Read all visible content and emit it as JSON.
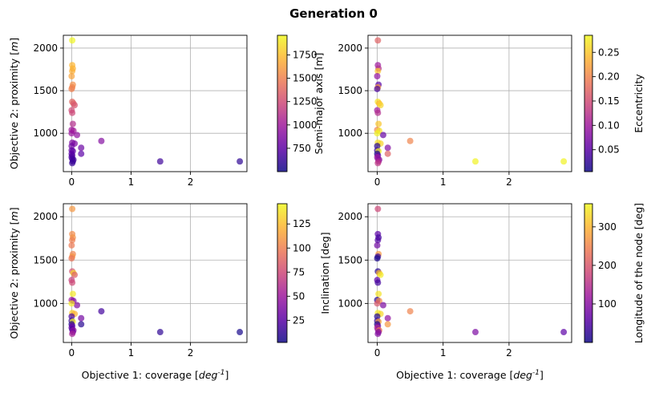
{
  "figure": {
    "title": "Generation 0"
  },
  "chart_data": [
    {
      "type": "scatter",
      "panel": "top-left",
      "xlabel": "",
      "ylabel": "Objective 2: proximity [m]",
      "xlim": [
        -0.14,
        2.95
      ],
      "ylim": [
        550,
        2150
      ],
      "xticks": [
        0,
        1,
        2
      ],
      "yticks": [
        1000,
        1500,
        2000
      ],
      "xtick_labels": [
        "0",
        "1",
        "2"
      ],
      "ytick_labels": [
        "1000",
        "1500",
        "2000"
      ],
      "grid": true,
      "colorbar": {
        "label": "",
        "min": 500,
        "max": 1960,
        "ticks": [
          750,
          1000,
          1250,
          1500,
          1750
        ],
        "tick_labels": [
          "750",
          "1000",
          "1250",
          "1500",
          "1750"
        ]
      },
      "points": [
        {
          "x": 0.01,
          "y": 2090,
          "c": 1950
        },
        {
          "x": 0.01,
          "y": 1800,
          "c": 1720
        },
        {
          "x": 0.02,
          "y": 1760,
          "c": 1700
        },
        {
          "x": 0.01,
          "y": 1730,
          "c": 1690
        },
        {
          "x": 0.0,
          "y": 1670,
          "c": 1650
        },
        {
          "x": 0.02,
          "y": 1570,
          "c": 1560
        },
        {
          "x": 0.01,
          "y": 1540,
          "c": 1520
        },
        {
          "x": 0.0,
          "y": 1520,
          "c": 1500
        },
        {
          "x": 0.01,
          "y": 1370,
          "c": 1380
        },
        {
          "x": 0.03,
          "y": 1350,
          "c": 1350
        },
        {
          "x": 0.05,
          "y": 1330,
          "c": 1300
        },
        {
          "x": 0.0,
          "y": 1270,
          "c": 1250
        },
        {
          "x": 0.01,
          "y": 1240,
          "c": 1230
        },
        {
          "x": 0.02,
          "y": 1110,
          "c": 1100
        },
        {
          "x": 0.0,
          "y": 1040,
          "c": 1000
        },
        {
          "x": 0.03,
          "y": 1030,
          "c": 1020
        },
        {
          "x": 0.09,
          "y": 980,
          "c": 950
        },
        {
          "x": 0.0,
          "y": 1000,
          "c": 980
        },
        {
          "x": 0.01,
          "y": 890,
          "c": 880
        },
        {
          "x": 0.05,
          "y": 880,
          "c": 870
        },
        {
          "x": 0.0,
          "y": 850,
          "c": 820
        },
        {
          "x": 0.16,
          "y": 830,
          "c": 800
        },
        {
          "x": 0.0,
          "y": 800,
          "c": 780
        },
        {
          "x": 0.02,
          "y": 790,
          "c": 760
        },
        {
          "x": 0.16,
          "y": 760,
          "c": 740
        },
        {
          "x": 0.0,
          "y": 760,
          "c": 740
        },
        {
          "x": 0.01,
          "y": 740,
          "c": 720
        },
        {
          "x": 0.0,
          "y": 720,
          "c": 700
        },
        {
          "x": 0.01,
          "y": 700,
          "c": 680
        },
        {
          "x": 0.03,
          "y": 690,
          "c": 660
        },
        {
          "x": 0.02,
          "y": 670,
          "c": 650
        },
        {
          "x": 0.01,
          "y": 650,
          "c": 630
        },
        {
          "x": 0.5,
          "y": 910,
          "c": 900
        },
        {
          "x": 1.49,
          "y": 670,
          "c": 650
        },
        {
          "x": 2.83,
          "y": 670,
          "c": 600
        }
      ]
    },
    {
      "type": "scatter",
      "panel": "top-right",
      "xlabel": "",
      "ylabel": "Semi-major axis [m]",
      "xlim": [
        -0.14,
        2.95
      ],
      "ylim": [
        550,
        2150
      ],
      "xticks": [
        0,
        1,
        2
      ],
      "yticks": [
        1000,
        1500,
        2000
      ],
      "xtick_labels": [
        "0",
        "1",
        "2"
      ],
      "ytick_labels": [
        "1000",
        "1500",
        "2000"
      ],
      "grid": true,
      "colorbar": {
        "label": "Eccentricity",
        "min": 0.005,
        "max": 0.285,
        "ticks": [
          0.05,
          0.1,
          0.15,
          0.2,
          0.25
        ],
        "tick_labels": [
          "0.05",
          "0.10",
          "0.15",
          "0.20",
          "0.25"
        ]
      },
      "points": [
        {
          "x": 0.01,
          "y": 2090,
          "c": 0.17
        },
        {
          "x": 0.01,
          "y": 1800,
          "c": 0.1
        },
        {
          "x": 0.02,
          "y": 1760,
          "c": 0.12
        },
        {
          "x": 0.01,
          "y": 1730,
          "c": 0.25
        },
        {
          "x": 0.0,
          "y": 1670,
          "c": 0.09
        },
        {
          "x": 0.02,
          "y": 1570,
          "c": 0.05
        },
        {
          "x": 0.01,
          "y": 1540,
          "c": 0.22
        },
        {
          "x": 0.0,
          "y": 1520,
          "c": 0.04
        },
        {
          "x": 0.01,
          "y": 1370,
          "c": 0.27
        },
        {
          "x": 0.03,
          "y": 1350,
          "c": 0.24
        },
        {
          "x": 0.05,
          "y": 1330,
          "c": 0.26
        },
        {
          "x": 0.0,
          "y": 1270,
          "c": 0.1
        },
        {
          "x": 0.01,
          "y": 1240,
          "c": 0.12
        },
        {
          "x": 0.02,
          "y": 1110,
          "c": 0.25
        },
        {
          "x": 0.0,
          "y": 1040,
          "c": 0.2
        },
        {
          "x": 0.03,
          "y": 1030,
          "c": 0.27
        },
        {
          "x": 0.09,
          "y": 980,
          "c": 0.06
        },
        {
          "x": 0.0,
          "y": 1000,
          "c": 0.28
        },
        {
          "x": 0.01,
          "y": 890,
          "c": 0.27
        },
        {
          "x": 0.05,
          "y": 880,
          "c": 0.26
        },
        {
          "x": 0.0,
          "y": 850,
          "c": 0.02
        },
        {
          "x": 0.16,
          "y": 830,
          "c": 0.08
        },
        {
          "x": 0.0,
          "y": 800,
          "c": 0.03
        },
        {
          "x": 0.02,
          "y": 790,
          "c": 0.28
        },
        {
          "x": 0.16,
          "y": 760,
          "c": 0.17
        },
        {
          "x": 0.0,
          "y": 760,
          "c": 0.01
        },
        {
          "x": 0.01,
          "y": 740,
          "c": 0.05
        },
        {
          "x": 0.0,
          "y": 720,
          "c": 0.1
        },
        {
          "x": 0.01,
          "y": 700,
          "c": 0.09
        },
        {
          "x": 0.03,
          "y": 690,
          "c": 0.08
        },
        {
          "x": 0.02,
          "y": 670,
          "c": 0.11
        },
        {
          "x": 0.01,
          "y": 650,
          "c": 0.13
        },
        {
          "x": 0.5,
          "y": 910,
          "c": 0.2
        },
        {
          "x": 1.49,
          "y": 670,
          "c": 0.28
        },
        {
          "x": 2.83,
          "y": 670,
          "c": 0.28
        }
      ]
    },
    {
      "type": "scatter",
      "panel": "bottom-left",
      "xlabel": "Objective 1: coverage [deg^-1]",
      "ylabel": "Objective 2: proximity [m]",
      "xlim": [
        -0.14,
        2.95
      ],
      "ylim": [
        550,
        2150
      ],
      "xticks": [
        0,
        1,
        2
      ],
      "yticks": [
        1000,
        1500,
        2000
      ],
      "xtick_labels": [
        "0",
        "1",
        "2"
      ],
      "ytick_labels": [
        "1000",
        "1500",
        "2000"
      ],
      "grid": true,
      "colorbar": {
        "label": "Inclination [deg]",
        "min": 2,
        "max": 146,
        "ticks": [
          25,
          50,
          75,
          100,
          125
        ],
        "tick_labels": [
          "25",
          "50",
          "75",
          "100",
          "125"
        ]
      },
      "points": [
        {
          "x": 0.01,
          "y": 2090,
          "c": 110
        },
        {
          "x": 0.01,
          "y": 1800,
          "c": 105
        },
        {
          "x": 0.02,
          "y": 1760,
          "c": 108
        },
        {
          "x": 0.01,
          "y": 1730,
          "c": 100
        },
        {
          "x": 0.0,
          "y": 1670,
          "c": 98
        },
        {
          "x": 0.02,
          "y": 1570,
          "c": 102
        },
        {
          "x": 0.01,
          "y": 1540,
          "c": 110
        },
        {
          "x": 0.0,
          "y": 1520,
          "c": 95
        },
        {
          "x": 0.01,
          "y": 1370,
          "c": 80
        },
        {
          "x": 0.03,
          "y": 1350,
          "c": 135
        },
        {
          "x": 0.05,
          "y": 1330,
          "c": 85
        },
        {
          "x": 0.0,
          "y": 1270,
          "c": 70
        },
        {
          "x": 0.01,
          "y": 1240,
          "c": 75
        },
        {
          "x": 0.02,
          "y": 1110,
          "c": 140
        },
        {
          "x": 0.0,
          "y": 1040,
          "c": 50
        },
        {
          "x": 0.03,
          "y": 1030,
          "c": 40
        },
        {
          "x": 0.09,
          "y": 980,
          "c": 40
        },
        {
          "x": 0.0,
          "y": 1000,
          "c": 140
        },
        {
          "x": 0.01,
          "y": 890,
          "c": 130
        },
        {
          "x": 0.05,
          "y": 880,
          "c": 120
        },
        {
          "x": 0.0,
          "y": 850,
          "c": 20
        },
        {
          "x": 0.16,
          "y": 830,
          "c": 35
        },
        {
          "x": 0.0,
          "y": 800,
          "c": 15
        },
        {
          "x": 0.02,
          "y": 790,
          "c": 145
        },
        {
          "x": 0.16,
          "y": 760,
          "c": 10
        },
        {
          "x": 0.0,
          "y": 760,
          "c": 8
        },
        {
          "x": 0.01,
          "y": 740,
          "c": 25
        },
        {
          "x": 0.0,
          "y": 720,
          "c": 30
        },
        {
          "x": 0.01,
          "y": 700,
          "c": 20
        },
        {
          "x": 0.03,
          "y": 690,
          "c": 45
        },
        {
          "x": 0.02,
          "y": 670,
          "c": 35
        },
        {
          "x": 0.01,
          "y": 650,
          "c": 55
        },
        {
          "x": 0.5,
          "y": 910,
          "c": 18
        },
        {
          "x": 1.49,
          "y": 670,
          "c": 12
        },
        {
          "x": 2.83,
          "y": 670,
          "c": 5
        }
      ]
    },
    {
      "type": "scatter",
      "panel": "bottom-right",
      "xlabel": "Objective 1: coverage [deg^-1]",
      "ylabel": "",
      "xlim": [
        -0.14,
        2.95
      ],
      "ylim": [
        550,
        2150
      ],
      "xticks": [
        0,
        1,
        2
      ],
      "yticks": [
        1000,
        1500,
        2000
      ],
      "xtick_labels": [
        "0",
        "1",
        "2"
      ],
      "ytick_labels": [
        "1000",
        "1500",
        "2000"
      ],
      "grid": true,
      "colorbar": {
        "label": "Longitude of the node [deg]",
        "min": 0,
        "max": 360,
        "ticks": [
          100,
          200,
          300
        ],
        "tick_labels": [
          "100",
          "200",
          "300"
        ]
      },
      "points": [
        {
          "x": 0.01,
          "y": 2090,
          "c": 180
        },
        {
          "x": 0.01,
          "y": 1800,
          "c": 60
        },
        {
          "x": 0.02,
          "y": 1760,
          "c": 40
        },
        {
          "x": 0.01,
          "y": 1730,
          "c": 50
        },
        {
          "x": 0.0,
          "y": 1670,
          "c": 80
        },
        {
          "x": 0.02,
          "y": 1570,
          "c": 270
        },
        {
          "x": 0.01,
          "y": 1540,
          "c": 30
        },
        {
          "x": 0.0,
          "y": 1520,
          "c": 10
        },
        {
          "x": 0.01,
          "y": 1370,
          "c": 20
        },
        {
          "x": 0.03,
          "y": 1350,
          "c": 300
        },
        {
          "x": 0.05,
          "y": 1330,
          "c": 350
        },
        {
          "x": 0.0,
          "y": 1270,
          "c": 60
        },
        {
          "x": 0.01,
          "y": 1240,
          "c": 40
        },
        {
          "x": 0.02,
          "y": 1110,
          "c": 340
        },
        {
          "x": 0.0,
          "y": 1040,
          "c": 20
        },
        {
          "x": 0.03,
          "y": 1030,
          "c": 260
        },
        {
          "x": 0.09,
          "y": 980,
          "c": 90
        },
        {
          "x": 0.0,
          "y": 1000,
          "c": 200
        },
        {
          "x": 0.01,
          "y": 890,
          "c": 350
        },
        {
          "x": 0.05,
          "y": 880,
          "c": 330
        },
        {
          "x": 0.0,
          "y": 850,
          "c": 15
        },
        {
          "x": 0.16,
          "y": 830,
          "c": 110
        },
        {
          "x": 0.0,
          "y": 800,
          "c": 30
        },
        {
          "x": 0.02,
          "y": 790,
          "c": 280
        },
        {
          "x": 0.16,
          "y": 760,
          "c": 270
        },
        {
          "x": 0.0,
          "y": 760,
          "c": 10
        },
        {
          "x": 0.01,
          "y": 740,
          "c": 70
        },
        {
          "x": 0.0,
          "y": 720,
          "c": 150
        },
        {
          "x": 0.01,
          "y": 700,
          "c": 120
        },
        {
          "x": 0.03,
          "y": 690,
          "c": 240
        },
        {
          "x": 0.02,
          "y": 670,
          "c": 90
        },
        {
          "x": 0.01,
          "y": 650,
          "c": 100
        },
        {
          "x": 0.5,
          "y": 910,
          "c": 250
        },
        {
          "x": 1.49,
          "y": 670,
          "c": 90
        },
        {
          "x": 2.83,
          "y": 670,
          "c": 60
        }
      ]
    }
  ],
  "colormap": {
    "name": "plasma",
    "stops": [
      "#0d0887",
      "#5c01a6",
      "#9c179e",
      "#cc4778",
      "#ed7953",
      "#fdb42f",
      "#f0f921"
    ]
  },
  "style": {
    "grid_color": "#b0b0b0",
    "point_opacity": 0.7
  }
}
